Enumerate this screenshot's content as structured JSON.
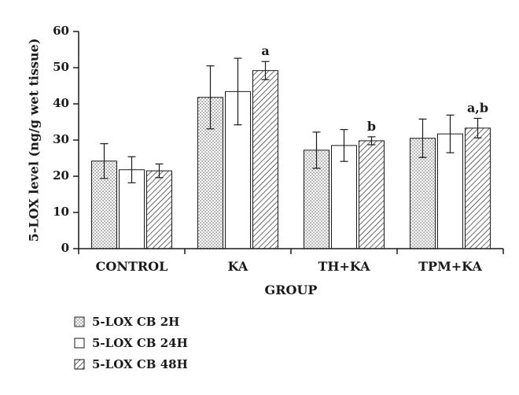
{
  "chart_data": {
    "type": "bar",
    "title": "",
    "xlabel": "GROUP",
    "ylabel": "5-LOX level (ng/g wet tissue)",
    "ylim": [
      0,
      60
    ],
    "yticks": [
      0,
      10,
      20,
      30,
      40,
      50,
      60
    ],
    "grid": false,
    "legend_position": "bottom-left",
    "categories": [
      "CONTROL",
      "KA",
      "TH+KA",
      "TPM+KA"
    ],
    "series": [
      {
        "name": "5-LOX CB 2H",
        "pattern": "dots",
        "values": [
          24.2,
          41.8,
          27.2,
          30.5
        ],
        "errors": [
          4.8,
          8.7,
          5.0,
          5.3
        ]
      },
      {
        "name": "5-LOX CB 24H",
        "pattern": "plain",
        "values": [
          21.8,
          43.4,
          28.5,
          31.7
        ],
        "errors": [
          3.6,
          9.2,
          4.4,
          5.2
        ]
      },
      {
        "name": "5-LOX CB 48H",
        "pattern": "hatch",
        "values": [
          21.5,
          49.2,
          29.8,
          33.3
        ],
        "errors": [
          1.9,
          2.5,
          1.1,
          2.7
        ]
      }
    ],
    "annotations": [
      {
        "category": "KA",
        "series": "5-LOX CB 48H",
        "text": "a"
      },
      {
        "category": "TH+KA",
        "series": "5-LOX CB 48H",
        "text": "b"
      },
      {
        "category": "TPM+KA",
        "series": "5-LOX CB 48H",
        "text": "a,b"
      }
    ],
    "colors": {
      "ink": "#1a1a1a",
      "fill": "#ffffff"
    }
  }
}
